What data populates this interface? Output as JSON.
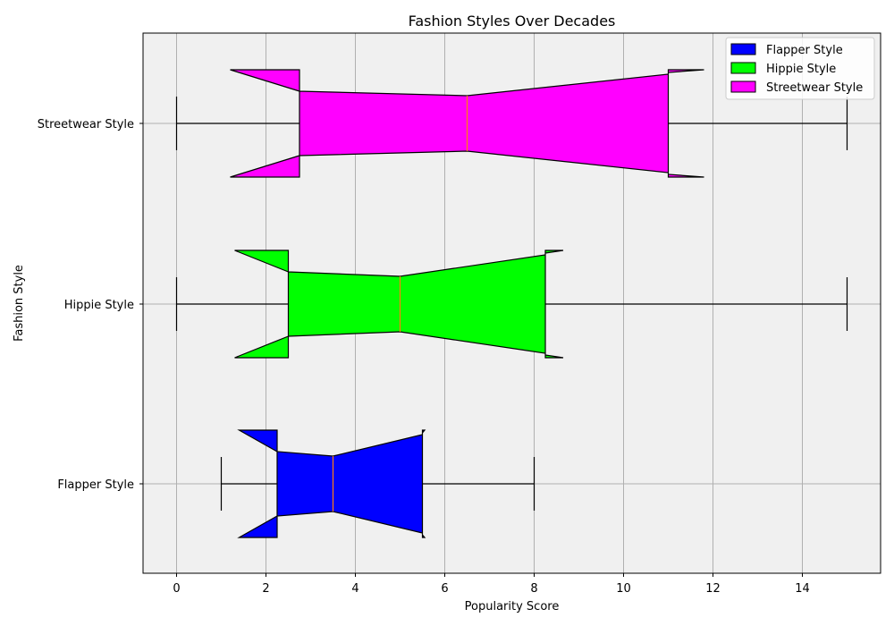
{
  "chart_data": {
    "type": "boxplot",
    "orientation": "horizontal",
    "notched": true,
    "title": "Fashion Styles Over Decades",
    "xlabel": "Popularity Score",
    "ylabel": "Fashion Style",
    "xlim": [
      -0.75,
      15.75
    ],
    "xticks": [
      0,
      2,
      4,
      6,
      8,
      10,
      12,
      14
    ],
    "grid": true,
    "background": "#f0f0f0",
    "median_color": "#ff7f0e",
    "legend": {
      "position": "top-right"
    },
    "series": [
      {
        "name": "Flapper Style",
        "color": "#0000ff",
        "whisker_low": 1,
        "q1": 2.25,
        "median": 3.5,
        "q3": 5.5,
        "whisker_high": 8,
        "notch_low": 1.4,
        "notch_high": 5.55
      },
      {
        "name": "Hippie Style",
        "color": "#00ff00",
        "whisker_low": 0,
        "q1": 2.5,
        "median": 5,
        "q3": 8.25,
        "whisker_high": 15,
        "notch_low": 1.3,
        "notch_high": 8.65
      },
      {
        "name": "Streetwear Style",
        "color": "#ff00ff",
        "whisker_low": 0,
        "q1": 2.75,
        "median": 6.5,
        "q3": 11,
        "whisker_high": 15,
        "notch_low": 1.2,
        "notch_high": 11.8
      }
    ]
  }
}
